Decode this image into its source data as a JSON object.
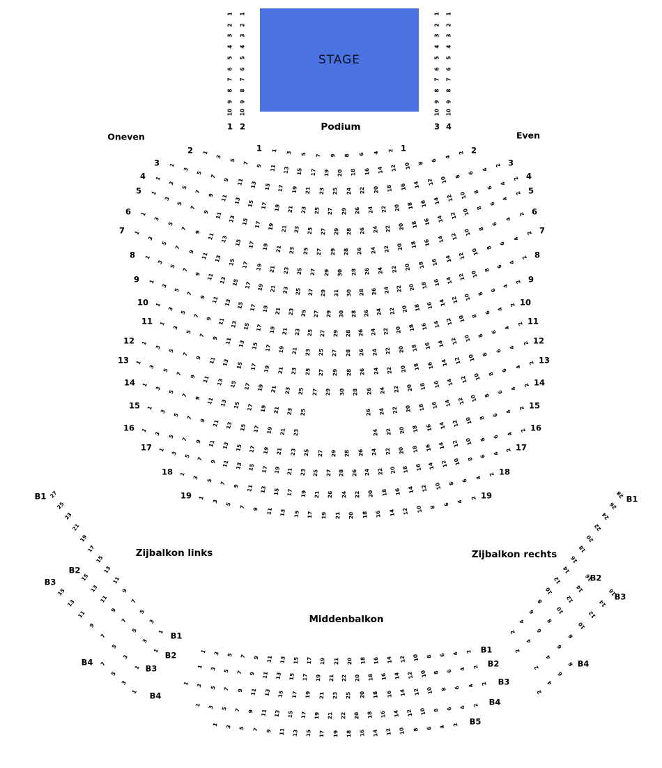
{
  "stage": {
    "label": "STAGE",
    "color": "#4a72e0"
  },
  "labels": {
    "podium": "Podium",
    "oneven": "Oneven",
    "even": "Even"
  },
  "stage_columns": {
    "left": [
      {
        "label": "1",
        "numbers": [
          1,
          2,
          3,
          4,
          5,
          6,
          7,
          8,
          9,
          10
        ]
      },
      {
        "label": "2",
        "numbers": [
          1,
          2,
          3,
          4,
          5,
          6,
          7,
          8,
          9,
          10
        ]
      }
    ],
    "right": [
      {
        "label": "3",
        "numbers": [
          1,
          2,
          3,
          4,
          5,
          6,
          7,
          8,
          9,
          10
        ]
      },
      {
        "label": "4",
        "numbers": [
          1,
          2,
          3,
          4,
          5,
          6,
          7,
          8,
          9,
          10
        ]
      }
    ]
  },
  "main_floor": {
    "rows": [
      {
        "label": "1",
        "seats": [
          1,
          3,
          5,
          7,
          9,
          8,
          6,
          4,
          2
        ]
      },
      {
        "label": "2",
        "seats": [
          1,
          3,
          5,
          7,
          9,
          11,
          13,
          15,
          17,
          19,
          20,
          18,
          16,
          14,
          12,
          10,
          8,
          6,
          4,
          2
        ]
      },
      {
        "label": "3",
        "seats": [
          1,
          3,
          5,
          7,
          9,
          11,
          13,
          15,
          17,
          19,
          21,
          23,
          25,
          24,
          22,
          20,
          18,
          16,
          14,
          12,
          10,
          8,
          6,
          4,
          2
        ]
      },
      {
        "label": "4",
        "seats": [
          1,
          3,
          5,
          7,
          9,
          11,
          13,
          15,
          17,
          19,
          21,
          23,
          25,
          27,
          29,
          26,
          24,
          22,
          20,
          18,
          16,
          14,
          12,
          10,
          8,
          6,
          4,
          2
        ]
      },
      {
        "label": "5",
        "seats": [
          1,
          3,
          5,
          7,
          9,
          11,
          13,
          15,
          17,
          19,
          21,
          23,
          25,
          27,
          29,
          28,
          26,
          24,
          22,
          20,
          18,
          16,
          14,
          12,
          10,
          8,
          6,
          4,
          2
        ]
      },
      {
        "label": "6",
        "seats": [
          1,
          3,
          5,
          7,
          9,
          11,
          13,
          15,
          17,
          19,
          21,
          23,
          25,
          27,
          29,
          28,
          26,
          24,
          22,
          20,
          18,
          16,
          14,
          12,
          10,
          8,
          6,
          4,
          2
        ]
      },
      {
        "label": "7",
        "seats": [
          1,
          3,
          5,
          7,
          9,
          11,
          13,
          15,
          17,
          19,
          21,
          23,
          25,
          27,
          29,
          30,
          28,
          26,
          24,
          22,
          20,
          18,
          16,
          14,
          12,
          10,
          8,
          6,
          4,
          2
        ]
      },
      {
        "label": "8",
        "seats": [
          1,
          3,
          5,
          7,
          9,
          11,
          13,
          15,
          17,
          19,
          21,
          23,
          25,
          27,
          29,
          31,
          30,
          28,
          26,
          24,
          22,
          20,
          18,
          16,
          14,
          12,
          10,
          8,
          6,
          4,
          2
        ]
      },
      {
        "label": "9",
        "seats": [
          1,
          3,
          5,
          7,
          9,
          11,
          13,
          15,
          17,
          19,
          21,
          23,
          25,
          27,
          29,
          30,
          28,
          26,
          24,
          22,
          20,
          18,
          16,
          14,
          12,
          10,
          8,
          6,
          4,
          2
        ]
      },
      {
        "label": "10",
        "seats": [
          1,
          3,
          5,
          7,
          9,
          11,
          13,
          15,
          17,
          19,
          21,
          23,
          25,
          27,
          29,
          28,
          26,
          24,
          22,
          20,
          18,
          16,
          14,
          12,
          10,
          8,
          6,
          4,
          2
        ]
      },
      {
        "label": "11",
        "seats": [
          1,
          3,
          5,
          7,
          9,
          11,
          13,
          15,
          17,
          19,
          21,
          23,
          25,
          27,
          28,
          26,
          24,
          22,
          20,
          18,
          16,
          14,
          12,
          10,
          8,
          6,
          4,
          2
        ]
      },
      {
        "label": "12",
        "seats": [
          1,
          3,
          5,
          7,
          9,
          11,
          13,
          15,
          17,
          19,
          21,
          23,
          25,
          27,
          29,
          28,
          26,
          24,
          22,
          20,
          18,
          16,
          14,
          12,
          10,
          8,
          6,
          4,
          2
        ]
      },
      {
        "label": "13",
        "seats": [
          1,
          3,
          5,
          7,
          9,
          11,
          13,
          15,
          17,
          19,
          21,
          23,
          25,
          27,
          29,
          30,
          28,
          26,
          24,
          22,
          20,
          18,
          16,
          14,
          12,
          10,
          8,
          6,
          4,
          2
        ]
      },
      {
        "label": "14",
        "seats": [
          1,
          3,
          5,
          7,
          9,
          11,
          13,
          15,
          17,
          19,
          21,
          23,
          25,
          26,
          24,
          22,
          20,
          18,
          16,
          14,
          12,
          10,
          8,
          6,
          4,
          2
        ],
        "gap_after": 13,
        "gap_slots": 4
      },
      {
        "label": "15",
        "seats": [
          1,
          3,
          5,
          7,
          9,
          11,
          13,
          15,
          17,
          19,
          21,
          23,
          24,
          22,
          20,
          18,
          16,
          14,
          12,
          10,
          8,
          6,
          4,
          2
        ],
        "gap_after": 12,
        "gap_slots": 5
      },
      {
        "label": "16",
        "seats": [
          1,
          3,
          5,
          7,
          9,
          11,
          13,
          15,
          17,
          19,
          21,
          23,
          25,
          27,
          29,
          28,
          26,
          24,
          22,
          20,
          18,
          16,
          14,
          12,
          10,
          8,
          6,
          4,
          2
        ]
      },
      {
        "label": "17",
        "seats": [
          1,
          3,
          5,
          7,
          9,
          11,
          13,
          15,
          17,
          19,
          21,
          23,
          25,
          27,
          28,
          26,
          24,
          22,
          20,
          18,
          16,
          14,
          12,
          10,
          8,
          6,
          4,
          2
        ]
      },
      {
        "label": "18",
        "seats": [
          1,
          3,
          5,
          7,
          9,
          11,
          13,
          15,
          17,
          19,
          21,
          26,
          24,
          22,
          20,
          18,
          16,
          14,
          12,
          10,
          8,
          6,
          4,
          2
        ]
      },
      {
        "label": "19",
        "seats": [
          1,
          3,
          5,
          7,
          9,
          11,
          13,
          15,
          17,
          19,
          21,
          20,
          18,
          16,
          14,
          12,
          10,
          8,
          6,
          4,
          2
        ]
      }
    ]
  },
  "balcony_left": {
    "title": "Zijbalkon links",
    "arcs": [
      {
        "label": "B1",
        "seats": [
          27,
          25,
          23,
          21,
          19,
          17,
          15,
          13,
          11,
          9,
          7,
          5,
          3,
          1
        ]
      },
      {
        "label": "B2",
        "seats": [
          15,
          13,
          11,
          9,
          7,
          5,
          3,
          1
        ]
      },
      {
        "label": "B3",
        "seats": [
          15,
          13,
          11,
          9,
          7,
          5,
          3,
          1
        ]
      },
      {
        "label": "B4",
        "seats": [
          7,
          5,
          3,
          1
        ]
      }
    ]
  },
  "balcony_right": {
    "title": "Zijbalkon rechts",
    "arcs": [
      {
        "label": "B1",
        "seats": [
          28,
          26,
          24,
          22,
          20,
          18,
          16,
          14,
          12,
          10,
          8,
          6,
          4,
          2
        ]
      },
      {
        "label": "B2",
        "seats": [
          16,
          14,
          12,
          10,
          8,
          6,
          4,
          2
        ]
      },
      {
        "label": "B3",
        "seats": [
          16,
          14,
          12,
          10,
          8,
          6,
          4,
          2
        ]
      },
      {
        "label": "B4",
        "seats": [
          8,
          6,
          4,
          2
        ]
      }
    ]
  },
  "balcony_middle": {
    "title": "Middenbalkon",
    "rows": [
      {
        "left_label": "B1",
        "right_label": "B1",
        "seats": [
          1,
          3,
          5,
          7,
          9,
          11,
          13,
          15,
          17,
          19,
          21,
          20,
          18,
          16,
          14,
          12,
          10,
          8,
          6,
          4,
          2
        ]
      },
      {
        "left_label": "B2",
        "right_label": "B2",
        "seats": [
          1,
          3,
          5,
          7,
          9,
          11,
          13,
          15,
          17,
          19,
          21,
          22,
          20,
          18,
          16,
          14,
          12,
          10,
          8,
          6,
          4,
          2
        ]
      },
      {
        "left_label": "B3",
        "right_label": "B3",
        "seats": [
          1,
          3,
          5,
          7,
          9,
          11,
          13,
          15,
          17,
          19,
          21,
          23,
          25,
          20,
          18,
          16,
          14,
          12,
          10,
          8,
          6,
          4,
          2
        ]
      },
      {
        "left_label": "B4",
        "right_label": "B4",
        "seats": [
          1,
          3,
          5,
          7,
          9,
          11,
          13,
          15,
          17,
          19,
          21,
          22,
          20,
          18,
          16,
          14,
          12,
          10,
          8,
          6,
          4,
          2
        ]
      },
      {
        "left_label": null,
        "right_label": "B5",
        "seats": [
          1,
          3,
          5,
          7,
          9,
          11,
          13,
          15,
          17,
          19,
          18,
          16,
          14,
          12,
          10,
          8,
          6,
          4,
          2
        ]
      }
    ]
  }
}
